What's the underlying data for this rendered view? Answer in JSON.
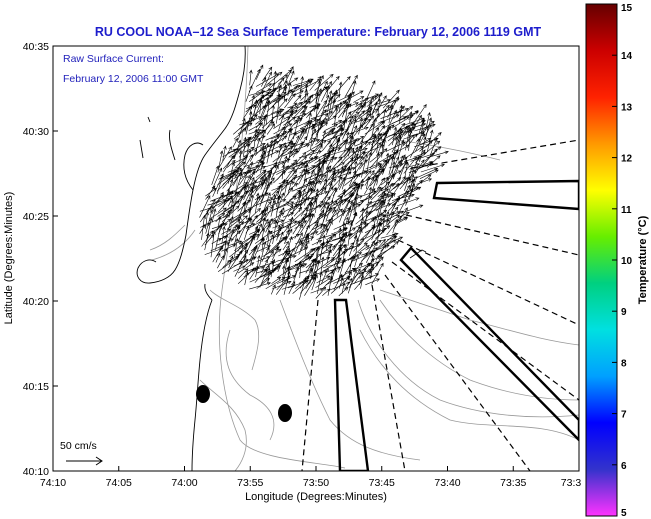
{
  "title": "RU COOL  NOAA–12  Sea Surface Temperature:  February 12, 2006 1119 GMT",
  "legend": {
    "line1": "Raw Surface Current:",
    "line2": "February 12, 2006 11:00 GMT"
  },
  "scale_label": "50 cm/s",
  "x_axis": {
    "label": "Longitude (Degrees:Minutes)",
    "ticks": [
      "74:10",
      "74:05",
      "74:00",
      "73:55",
      "73:50",
      "73:45",
      "73:40",
      "73:35",
      "73:3"
    ]
  },
  "y_axis": {
    "label": "Latitude (Degrees:Minutes)",
    "ticks": [
      "40:35",
      "40:30",
      "40:25",
      "40:20",
      "40:15",
      "40:10"
    ]
  },
  "colorbar": {
    "label": "Temperature (°C)",
    "ticks": [
      "15",
      "14",
      "13",
      "12",
      "11",
      "10",
      "9",
      "8",
      "7",
      "6",
      "5"
    ],
    "colors": [
      "#ff33ff",
      "#3333cc",
      "#0000ff",
      "#00a0ff",
      "#00e0e0",
      "#00d080",
      "#66ee00",
      "#ffff00",
      "#ff9900",
      "#ff2200",
      "#cc0000",
      "#660000"
    ]
  },
  "colors": {
    "title": "#1d1dcc",
    "coast": "#000000",
    "bathymetry": "#999999"
  }
}
